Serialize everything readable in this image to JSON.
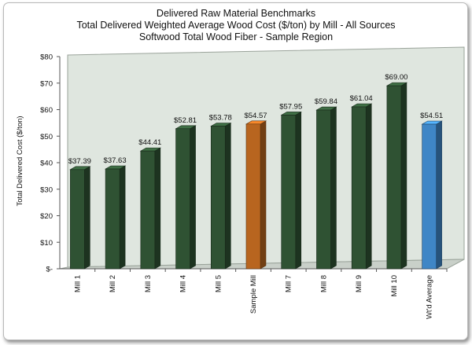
{
  "chart_data": {
    "type": "bar",
    "title": "Delivered Raw Material Benchmarks",
    "subtitle": "Total Delivered Weighted Average Wood Cost ($/ton) by Mill - All Sources",
    "subtitle2": "Softwood Total Wood Fiber - Sample Region",
    "xlabel": "",
    "ylabel": "Total Delivered Cost ($/ton)",
    "ylim": [
      0,
      80
    ],
    "yticks": [
      "$-",
      "$10",
      "$20",
      "$30",
      "$40",
      "$50",
      "$60",
      "$70",
      "$80"
    ],
    "grid": false,
    "legend": "none",
    "categories": [
      "Mill 1",
      "Mill 2",
      "Mill 3",
      "Mill 4",
      "Mill 5",
      "Sample Mill",
      "Mill 7",
      "Mill 8",
      "Mill 9",
      "Mill 10",
      "Wt'd Average"
    ],
    "values": [
      37.39,
      37.63,
      44.41,
      52.81,
      53.78,
      54.57,
      57.95,
      59.84,
      61.04,
      69.0,
      54.51
    ],
    "data_labels": [
      "$37.39",
      "$37.63",
      "$44.41",
      "$52.81",
      "$53.78",
      "$54.57",
      "$57.95",
      "$59.84",
      "$61.04",
      "$69.00",
      "$54.51"
    ],
    "colors": {
      "default_bar": "#2f5233",
      "highlight_bar": "#b8651f",
      "average_bar": "#3f86c6",
      "plot_wall": "#dfe6df",
      "floor": "#c9d0c9"
    },
    "bar_color_keys": [
      "default_bar",
      "default_bar",
      "default_bar",
      "default_bar",
      "default_bar",
      "highlight_bar",
      "default_bar",
      "default_bar",
      "default_bar",
      "default_bar",
      "average_bar"
    ]
  }
}
